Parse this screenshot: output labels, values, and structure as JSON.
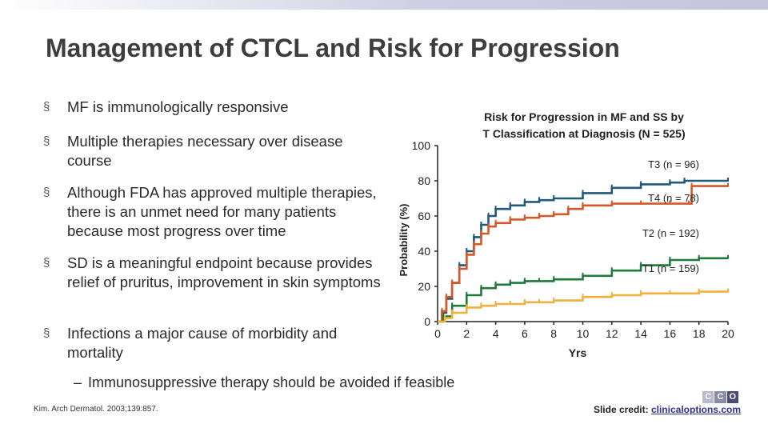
{
  "slide": {
    "title": "Management of CTCL and Risk for Progression",
    "bullet_marker": "§",
    "bullets": [
      "MF is immunologically responsive",
      "Multiple therapies necessary over disease course",
      "Although FDA has approved multiple therapies, there is an unmet need for many patients because most progress over time",
      "SD is a meaningful endpoint because provides relief of pruritus, improvement in skin symptoms",
      "Infections a major cause of morbidity and mortality"
    ],
    "sub_bullet_marker": "–",
    "sub_bullet": "Immunosuppressive therapy should be avoided if feasible",
    "citation": "Kim. Arch Dermatol. 2003;139:857.",
    "credit_label": "Slide credit:",
    "credit_link": "clinicaloptions.com",
    "logo_letters": [
      "C",
      "C",
      "O"
    ],
    "logo_colors": [
      "#b9b9c9",
      "#8a8aa6",
      "#4b4b7a"
    ],
    "topbar_color": "#c4c4dc"
  },
  "chart_data": {
    "type": "line",
    "title": "Risk for Progression in MF and SS by T Classification at Diagnosis (N = 525)",
    "title_lines": [
      "Risk for Progression in MF and SS by",
      "T Classification at Diagnosis (N = 525)"
    ],
    "xlabel": "Yrs",
    "ylabel": "Probability (%)",
    "xlim": [
      0,
      20
    ],
    "ylim": [
      0,
      100
    ],
    "xticks": [
      0,
      2,
      4,
      6,
      8,
      10,
      12,
      14,
      16,
      18,
      20
    ],
    "yticks": [
      0,
      20,
      40,
      60,
      80,
      100
    ],
    "grid": false,
    "series": [
      {
        "name": "T3 (n = 96)",
        "color": "#1f5a78",
        "points": [
          [
            0,
            0
          ],
          [
            0.3,
            5
          ],
          [
            0.6,
            13
          ],
          [
            1,
            22
          ],
          [
            1.5,
            32
          ],
          [
            2,
            40
          ],
          [
            2.5,
            48
          ],
          [
            3,
            55
          ],
          [
            3.5,
            60
          ],
          [
            4,
            64
          ],
          [
            5,
            66
          ],
          [
            6,
            68
          ],
          [
            7,
            69
          ],
          [
            8,
            70
          ],
          [
            10,
            73
          ],
          [
            12,
            76
          ],
          [
            14,
            78
          ],
          [
            16,
            79
          ],
          [
            17,
            80
          ],
          [
            20,
            80
          ]
        ]
      },
      {
        "name": "T4 (n = 78)",
        "color": "#d4582a",
        "points": [
          [
            0,
            0
          ],
          [
            0.3,
            6
          ],
          [
            0.6,
            14
          ],
          [
            1,
            22
          ],
          [
            1.5,
            30
          ],
          [
            2,
            38
          ],
          [
            2.5,
            44
          ],
          [
            3,
            50
          ],
          [
            3.5,
            54
          ],
          [
            4,
            56
          ],
          [
            5,
            58
          ],
          [
            6,
            59
          ],
          [
            7,
            60
          ],
          [
            8,
            61
          ],
          [
            9,
            64
          ],
          [
            10,
            66
          ],
          [
            12,
            67
          ],
          [
            14,
            67
          ],
          [
            16,
            67
          ],
          [
            17.3,
            67
          ],
          [
            17.5,
            77
          ],
          [
            20,
            77
          ]
        ]
      },
      {
        "name": "T2 (n = 192)",
        "color": "#1e7a3c",
        "points": [
          [
            0,
            0
          ],
          [
            0.4,
            3
          ],
          [
            1,
            9
          ],
          [
            2,
            15
          ],
          [
            3,
            19
          ],
          [
            4,
            21
          ],
          [
            5,
            22
          ],
          [
            6,
            23
          ],
          [
            7,
            23
          ],
          [
            8,
            24
          ],
          [
            10,
            26
          ],
          [
            12,
            29
          ],
          [
            14,
            32
          ],
          [
            16,
            35
          ],
          [
            18,
            36
          ],
          [
            20,
            36
          ]
        ]
      },
      {
        "name": "T1 (n = 159)",
        "color": "#f0b23c",
        "points": [
          [
            0,
            0
          ],
          [
            0.5,
            2
          ],
          [
            1,
            5
          ],
          [
            2,
            8
          ],
          [
            3,
            9
          ],
          [
            4,
            10
          ],
          [
            5,
            10
          ],
          [
            6,
            11
          ],
          [
            7,
            11
          ],
          [
            8,
            12
          ],
          [
            10,
            14
          ],
          [
            12,
            15
          ],
          [
            14,
            16
          ],
          [
            16,
            16
          ],
          [
            18,
            17
          ],
          [
            20,
            17
          ]
        ]
      }
    ],
    "series_label_y": {
      "T3 (n = 96)": 89,
      "T4 (n = 78)": 70,
      "T2 (n = 192)": 50,
      "T1 (n = 159)": 30
    }
  }
}
